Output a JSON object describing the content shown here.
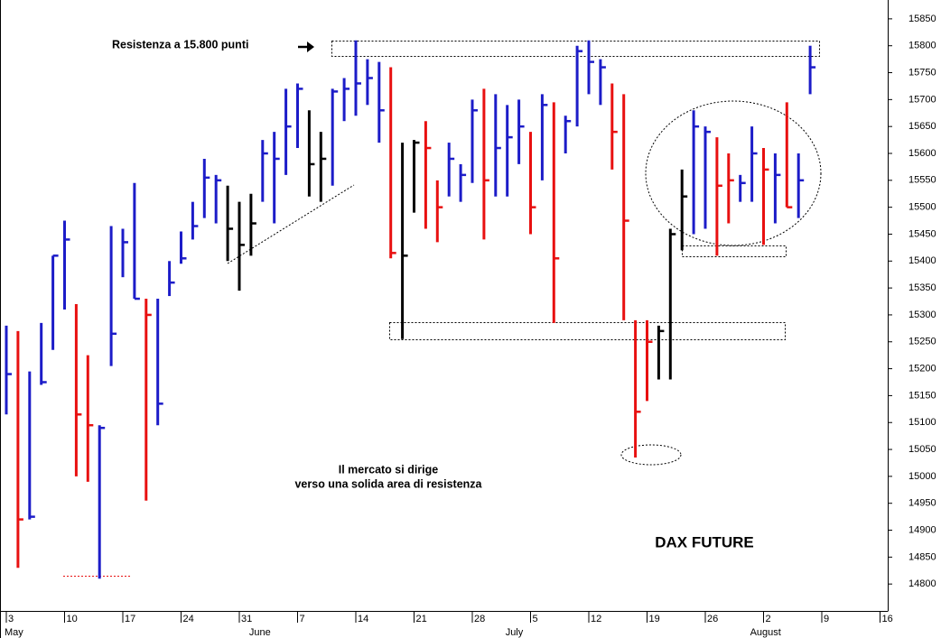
{
  "chart_data": {
    "type": "ohlc",
    "title": "DAX FUTURE",
    "annotations": [
      "Resistenza a 15.800 punti",
      "Il mercato si dirige",
      "verso una solida area di resistenza"
    ],
    "categories": [
      "3",
      null,
      null,
      null,
      null,
      "10",
      null,
      null,
      null,
      null,
      "17",
      null,
      null,
      null,
      null,
      "24",
      null,
      null,
      null,
      null,
      "31",
      null,
      null,
      null,
      null,
      "7",
      null,
      null,
      null,
      null,
      "14",
      null,
      null,
      null,
      null,
      "21",
      null,
      null,
      null,
      null,
      "28",
      null,
      null,
      null,
      null,
      "5",
      null,
      null,
      null,
      null,
      "12",
      null,
      null,
      null,
      null,
      "19",
      null,
      null,
      null,
      null,
      "26",
      null,
      null,
      null,
      null,
      "2",
      null,
      null,
      null,
      null,
      "9",
      null,
      null,
      null,
      null,
      "16"
    ],
    "month_labels": [
      "May",
      null,
      null,
      null,
      null,
      null,
      null,
      null,
      null,
      null,
      null,
      null,
      null,
      null,
      null,
      null,
      null,
      null,
      null,
      null,
      null,
      "June",
      null,
      null,
      null,
      null,
      null,
      null,
      null,
      null,
      null,
      null,
      null,
      null,
      null,
      null,
      null,
      null,
      null,
      null,
      null,
      null,
      null,
      "July",
      null,
      null,
      null,
      null,
      null,
      null,
      null,
      null,
      null,
      null,
      null,
      null,
      null,
      null,
      null,
      null,
      null,
      null,
      null,
      null,
      "August",
      null,
      null,
      null,
      null,
      null,
      null,
      null,
      null,
      null,
      null
    ],
    "high": [
      15280,
      15270,
      15195,
      15285,
      15410,
      15475,
      15320,
      15225,
      15095,
      15465,
      15460,
      15545,
      15330,
      15330,
      15400,
      15455,
      15510,
      15590,
      15560,
      15540,
      15510,
      15525,
      15625,
      15640,
      15720,
      15730,
      15680,
      15640,
      15720,
      15740,
      15810,
      15775,
      15770,
      15760,
      15620,
      15625,
      15660,
      15550,
      15620,
      15580,
      15700,
      15720,
      15710,
      15690,
      15700,
      15640,
      15710,
      15695,
      15670,
      15800,
      15810,
      15775,
      15730,
      15710,
      15290,
      15290,
      15280,
      15460,
      15570,
      15680,
      15650,
      15630,
      15600,
      15560,
      15650,
      15610,
      15600,
      15695,
      15600,
      15800,
      null,
      null,
      null,
      null,
      null,
      null
    ],
    "low": [
      15115,
      14830,
      14920,
      15170,
      15235,
      15310,
      15000,
      14990,
      14810,
      15205,
      15370,
      15330,
      14955,
      15095,
      15335,
      15395,
      15440,
      15480,
      15470,
      15400,
      15345,
      15410,
      15510,
      15470,
      15560,
      15610,
      15520,
      15510,
      15540,
      15660,
      15670,
      15690,
      15620,
      15405,
      15255,
      15490,
      15460,
      15435,
      15520,
      15510,
      15545,
      15440,
      15520,
      15520,
      15580,
      15450,
      15550,
      15285,
      15600,
      15650,
      15710,
      15690,
      15570,
      15290,
      15035,
      15140,
      15180,
      15180,
      15420,
      15450,
      15460,
      15410,
      15470,
      15510,
      15510,
      15430,
      15470,
      15500,
      15480,
      15710,
      null,
      null,
      null,
      null,
      null,
      null
    ],
    "close": [
      15190,
      14920,
      14925,
      15175,
      15410,
      15440,
      15115,
      15095,
      15090,
      15265,
      15435,
      15330,
      15300,
      15135,
      15360,
      15405,
      15465,
      15555,
      15550,
      15460,
      15430,
      15470,
      15600,
      15590,
      15650,
      15720,
      15580,
      15590,
      15715,
      15720,
      15730,
      15740,
      15680,
      15415,
      15410,
      15620,
      15610,
      15500,
      15590,
      15560,
      15680,
      15550,
      15610,
      15630,
      15650,
      15500,
      15690,
      15405,
      15660,
      15790,
      15770,
      15760,
      15640,
      15475,
      15120,
      15250,
      15270,
      15450,
      15520,
      15650,
      15640,
      15540,
      15550,
      15545,
      15600,
      15570,
      15560,
      15500,
      15550,
      15760,
      null,
      null,
      null,
      null,
      null,
      null
    ],
    "colors": [
      "#1c1cc8",
      "#e81010",
      "#1c1cc8",
      "#1c1cc8",
      "#1c1cc8",
      "#1c1cc8",
      "#e81010",
      "#e81010",
      "#1c1cc8",
      "#1c1cc8",
      "#1c1cc8",
      "#1c1cc8",
      "#e81010",
      "#1c1cc8",
      "#1c1cc8",
      "#1c1cc8",
      "#1c1cc8",
      "#1c1cc8",
      "#1c1cc8",
      "#000000",
      "#000000",
      "#000000",
      "#1c1cc8",
      "#1c1cc8",
      "#1c1cc8",
      "#1c1cc8",
      "#000000",
      "#000000",
      "#1c1cc8",
      "#1c1cc8",
      "#1c1cc8",
      "#1c1cc8",
      "#1c1cc8",
      "#e81010",
      "#000000",
      "#000000",
      "#e81010",
      "#e81010",
      "#1c1cc8",
      "#1c1cc8",
      "#1c1cc8",
      "#e81010",
      "#1c1cc8",
      "#1c1cc8",
      "#1c1cc8",
      "#e81010",
      "#1c1cc8",
      "#e81010",
      "#1c1cc8",
      "#1c1cc8",
      "#1c1cc8",
      "#1c1cc8",
      "#e81010",
      "#e81010",
      "#e81010",
      "#e81010",
      "#000000",
      "#000000",
      "#000000",
      "#1c1cc8",
      "#1c1cc8",
      "#e81010",
      "#e81010",
      "#1c1cc8",
      "#1c1cc8",
      "#e81010",
      "#1c1cc8",
      "#e81010",
      "#1c1cc8",
      "#1c1cc8",
      null,
      null,
      null,
      null,
      null,
      null
    ],
    "ylim": [
      14750,
      15885
    ],
    "yticks": [
      14800,
      14850,
      14900,
      14950,
      15000,
      15050,
      15100,
      15150,
      15200,
      15250,
      15300,
      15350,
      15400,
      15450,
      15500,
      15550,
      15600,
      15650,
      15700,
      15750,
      15800,
      15850
    ]
  }
}
